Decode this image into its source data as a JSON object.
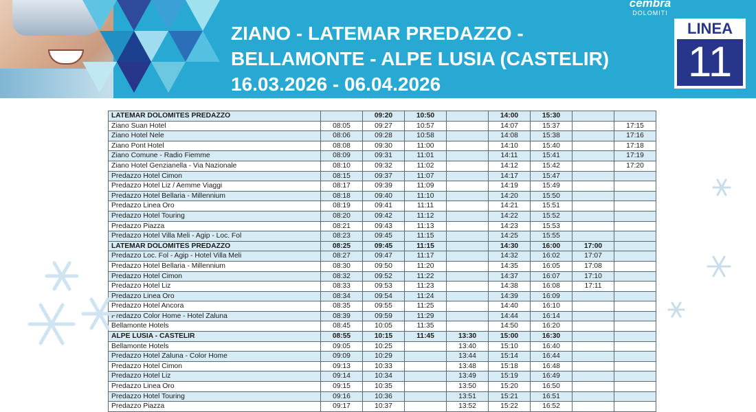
{
  "header": {
    "title_line1": "ZIANO - LATEMAR PREDAZZO -",
    "title_line2": "BELLAMONTE - ALPE LUSIA (CASTELIR)",
    "dates": "16.03.2026 - 06.04.2026",
    "brand_name": "cembra",
    "brand_sub": "DOLOMITI",
    "linea_label": "LINEA",
    "linea_number": "11"
  },
  "colors": {
    "header_bg": "#27a9d4",
    "navy": "#27368a",
    "row_tint": "#d6ebf4"
  },
  "icons": [
    "snowflake-icon"
  ],
  "timetable": {
    "rows": [
      {
        "stop": "LATEMAR DOLOMITES PREDAZZO",
        "times": [
          "",
          "09:20",
          "10:50",
          "",
          "14:00",
          "15:30",
          "",
          ""
        ],
        "header": true
      },
      {
        "stop": "Ziano Suan Hotel",
        "times": [
          "08:05",
          "09:27",
          "10:57",
          "",
          "14:07",
          "15:37",
          "",
          "17:15"
        ]
      },
      {
        "stop": "Ziano Hotel Nele",
        "times": [
          "08:06",
          "09:28",
          "10:58",
          "",
          "14:08",
          "15:38",
          "",
          "17:16"
        ]
      },
      {
        "stop": "Ziano Pont Hotel",
        "times": [
          "08:08",
          "09:30",
          "11:00",
          "",
          "14:10",
          "15:40",
          "",
          "17:18"
        ]
      },
      {
        "stop": "Ziano Comune - Radio Fiemme",
        "times": [
          "08:09",
          "09:31",
          "11:01",
          "",
          "14:11",
          "15:41",
          "",
          "17:19"
        ]
      },
      {
        "stop": "Ziano Hotel Genzianella - Via Nazionale",
        "times": [
          "08:10",
          "09:32",
          "11:02",
          "",
          "14:12",
          "15:42",
          "",
          "17:20"
        ]
      },
      {
        "stop": "Predazzo Hotel Cimon",
        "times": [
          "08:15",
          "09:37",
          "11:07",
          "",
          "14:17",
          "15:47",
          "",
          ""
        ]
      },
      {
        "stop": "Predazzo Hotel Liz / Aemme Viaggi",
        "times": [
          "08:17",
          "09:39",
          "11:09",
          "",
          "14:19",
          "15:49",
          "",
          ""
        ]
      },
      {
        "stop": "Predazzo Hotel Bellaria - Millennium",
        "times": [
          "08:18",
          "09:40",
          "11:10",
          "",
          "14:20",
          "15:50",
          "",
          ""
        ]
      },
      {
        "stop": "Predazzo Linea Oro",
        "times": [
          "08:19",
          "09:41",
          "11:11",
          "",
          "14:21",
          "15:51",
          "",
          ""
        ]
      },
      {
        "stop": "Predazzo Hotel Touring",
        "times": [
          "08:20",
          "09:42",
          "11:12",
          "",
          "14:22",
          "15:52",
          "",
          ""
        ]
      },
      {
        "stop": "Predazzo Piazza",
        "times": [
          "08:21",
          "09:43",
          "11:13",
          "",
          "14:23",
          "15:53",
          "",
          ""
        ]
      },
      {
        "stop": "Predazzo Hotel Villa Meli - Agip - Loc. Fol",
        "times": [
          "08:23",
          "09:45",
          "11:15",
          "",
          "14:25",
          "15:55",
          "",
          ""
        ]
      },
      {
        "stop": "LATEMAR DOLOMITES PREDAZZO",
        "times": [
          "08:25",
          "09:45",
          "11:15",
          "",
          "14:30",
          "16:00",
          "17:00",
          ""
        ],
        "header": true
      },
      {
        "stop": "Predazzo Loc. Fol - Agip - Hotel Villa Meli",
        "times": [
          "08:27",
          "09:47",
          "11:17",
          "",
          "14:32",
          "16:02",
          "17:07",
          ""
        ]
      },
      {
        "stop": "Predazzo Hotel Bellaria - Millennium",
        "times": [
          "08:30",
          "09:50",
          "11:20",
          "",
          "14:35",
          "16:05",
          "17:08",
          ""
        ]
      },
      {
        "stop": "Predazzo Hotel Cimon",
        "times": [
          "08:32",
          "09:52",
          "11:22",
          "",
          "14:37",
          "16:07",
          "17:10",
          ""
        ]
      },
      {
        "stop": "Predazzo Hotel Liz",
        "times": [
          "08:33",
          "09:53",
          "11:23",
          "",
          "14:38",
          "16:08",
          "17:11",
          ""
        ]
      },
      {
        "stop": "Predazzo Linea Oro",
        "times": [
          "08:34",
          "09:54",
          "11:24",
          "",
          "14:39",
          "16:09",
          "",
          ""
        ]
      },
      {
        "stop": "Predazzo Hotel Ancora",
        "times": [
          "08:35",
          "09:55",
          "11:25",
          "",
          "14:40",
          "16:10",
          "",
          ""
        ]
      },
      {
        "stop": "Predazzo Color Home - Hotel Zaluna",
        "times": [
          "08:39",
          "09:59",
          "11:29",
          "",
          "14:44",
          "16:14",
          "",
          ""
        ]
      },
      {
        "stop": "Bellamonte Hotels",
        "times": [
          "08:45",
          "10:05",
          "11:35",
          "",
          "14:50",
          "16:20",
          "",
          ""
        ]
      },
      {
        "stop": "ALPE LUSIA - CASTELIR",
        "times": [
          "08:55",
          "10:15",
          "11:45",
          "13:30",
          "15:00",
          "16:30",
          "",
          ""
        ],
        "header": true
      },
      {
        "stop": "Bellamonte Hotels",
        "times": [
          "09:05",
          "10:25",
          "",
          "13:40",
          "15:10",
          "16:40",
          "",
          ""
        ]
      },
      {
        "stop": "Predazzo Hotel Zaluna - Color Home",
        "times": [
          "09:09",
          "10:29",
          "",
          "13:44",
          "15:14",
          "16:44",
          "",
          ""
        ]
      },
      {
        "stop": "Predazzo Hotel Cimon",
        "times": [
          "09:13",
          "10:33",
          "",
          "13:48",
          "15:18",
          "16:48",
          "",
          ""
        ]
      },
      {
        "stop": "Predazzo Hotel Liz",
        "times": [
          "09:14",
          "10:34",
          "",
          "13:49",
          "15:19",
          "16:49",
          "",
          ""
        ]
      },
      {
        "stop": "Predazzo Linea Oro",
        "times": [
          "09:15",
          "10:35",
          "",
          "13:50",
          "15:20",
          "16:50",
          "",
          ""
        ]
      },
      {
        "stop": "Predazzo Hotel Touring",
        "times": [
          "09:16",
          "10:36",
          "",
          "13:51",
          "15:21",
          "16:51",
          "",
          ""
        ]
      },
      {
        "stop": "Predazzo Piazza",
        "times": [
          "09:17",
          "10:37",
          "",
          "13:52",
          "15:22",
          "16:52",
          "",
          ""
        ]
      }
    ]
  }
}
